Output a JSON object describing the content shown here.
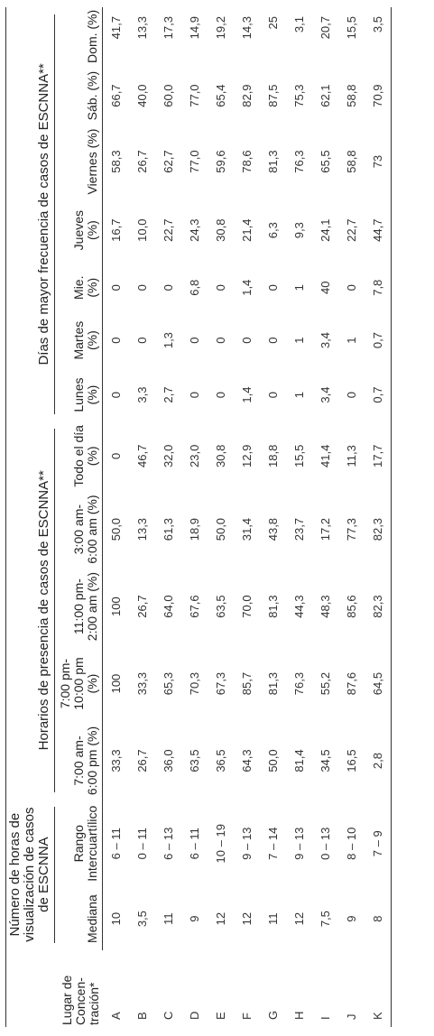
{
  "headers": {
    "lugar": "Lugar de Concen-tración*",
    "group_horas": "Número de horas de visualización de casos de ESCNNA",
    "group_horarios": "Horarios de presencia de casos de ESCNNA**",
    "group_dias": "Días de mayor frecuencia de casos de ESCNNA**",
    "columns": [
      "Mediana",
      "Rango Intercuartílico",
      "7:00 am- 6:00 pm (%)",
      "7:00 pm- 10:00 pm (%)",
      "11:00 pm- 2:00 am (%)",
      "3:00 am- 6:00 am (%)",
      "Todo el día (%)",
      "Lunes (%)",
      "Martes (%)",
      "Mie. (%)",
      "Jueves (%)",
      "Viernes (%)",
      "Sáb. (%)",
      "Dom. (%)"
    ]
  },
  "rows": [
    [
      "A",
      "10",
      "6 – 11",
      "33,3",
      "100",
      "100",
      "50,0",
      "0",
      "0",
      "0",
      "0",
      "16,7",
      "58,3",
      "66,7",
      "41,7"
    ],
    [
      "B",
      "3,5",
      "0 – 11",
      "26,7",
      "33,3",
      "26,7",
      "13,3",
      "46,7",
      "3,3",
      "0",
      "0",
      "10,0",
      "26,7",
      "40,0",
      "13,3"
    ],
    [
      "C",
      "11",
      "6 – 13",
      "36,0",
      "65,3",
      "64,0",
      "61,3",
      "32,0",
      "2,7",
      "1,3",
      "0",
      "22,7",
      "62,7",
      "60,0",
      "17,3"
    ],
    [
      "D",
      "9",
      "6 – 11",
      "63,5",
      "70,3",
      "67,6",
      "18,9",
      "23,0",
      "0",
      "0",
      "6,8",
      "24,3",
      "77,0",
      "77,0",
      "14,9"
    ],
    [
      "E",
      "12",
      "10 – 19",
      "36,5",
      "67,3",
      "63,5",
      "50,0",
      "30,8",
      "0",
      "0",
      "0",
      "30,8",
      "59,6",
      "65,4",
      "19,2"
    ],
    [
      "F",
      "12",
      "9 – 13",
      "64,3",
      "85,7",
      "70,0",
      "31,4",
      "12,9",
      "1,4",
      "0",
      "1,4",
      "21,4",
      "78,6",
      "82,9",
      "14,3"
    ],
    [
      "G",
      "11",
      "7 – 14",
      "50,0",
      "81,3",
      "81,3",
      "43,8",
      "18,8",
      "0",
      "0",
      "0",
      "6,3",
      "81,3",
      "87,5",
      "25"
    ],
    [
      "H",
      "12",
      "9 – 13",
      "81,4",
      "76,3",
      "44,3",
      "23,7",
      "15,5",
      "1",
      "1",
      "1",
      "9,3",
      "76,3",
      "75,3",
      "3,1"
    ],
    [
      "I",
      "7,5",
      "0 – 13",
      "34,5",
      "55,2",
      "48,3",
      "17,2",
      "41,4",
      "3,4",
      "3,4",
      "40",
      "24,1",
      "65,5",
      "62,1",
      "20,7"
    ],
    [
      "J",
      "9",
      "8 – 10",
      "16,5",
      "87,6",
      "85,6",
      "77,3",
      "11,3",
      "0",
      "1",
      "0",
      "22,7",
      "58,8",
      "58,8",
      "15,5"
    ],
    [
      "K",
      "8",
      "7 – 9",
      "2,8",
      "64,5",
      "82,3",
      "82,3",
      "17,7",
      "0,7",
      "0,7",
      "7,8",
      "44,7",
      "73",
      "70,9",
      "3,5"
    ]
  ]
}
